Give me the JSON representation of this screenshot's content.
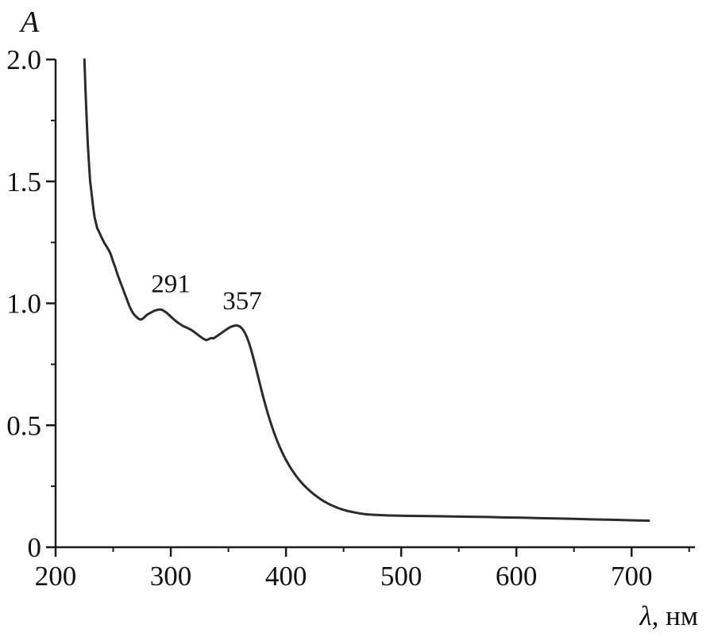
{
  "figure": {
    "background": "#ffffff",
    "axis_color": "#1a1a1a",
    "curve_color": "#2b2b2b"
  },
  "chart_data": {
    "type": "line",
    "title": "",
    "ylabel": "A",
    "xlabel_symbol": "λ",
    "xlabel_unit": ", нм",
    "xlim": [
      200,
      755
    ],
    "ylim": [
      0,
      2.0
    ],
    "x_ticks": [
      200,
      300,
      400,
      500,
      600,
      700
    ],
    "x_tick_labels": [
      "200",
      "300",
      "400",
      "500",
      "600",
      "700"
    ],
    "x_minor_ticks": [
      250,
      350,
      450,
      550,
      650,
      750
    ],
    "y_ticks": [
      0,
      0.5,
      1.0,
      1.5,
      2.0
    ],
    "y_tick_labels": [
      "0",
      "0.5",
      "1.0",
      "1.5",
      "2.0"
    ],
    "y_minor_ticks": [
      0.25,
      0.75,
      1.25,
      1.75
    ],
    "grid": false,
    "legend": false,
    "annotations": [
      {
        "text": "291",
        "x": 300,
        "y": 1.045
      },
      {
        "text": "357",
        "x": 362,
        "y": 0.975
      }
    ],
    "series": [
      {
        "name": "absorption-spectrum",
        "points": [
          [
            225,
            2.0
          ],
          [
            226,
            1.87
          ],
          [
            227,
            1.75
          ],
          [
            228,
            1.65
          ],
          [
            229,
            1.57
          ],
          [
            230,
            1.5
          ],
          [
            231,
            1.46
          ],
          [
            232,
            1.42
          ],
          [
            233,
            1.38
          ],
          [
            234,
            1.35
          ],
          [
            235,
            1.33
          ],
          [
            236,
            1.31
          ],
          [
            237,
            1.3
          ],
          [
            238,
            1.29
          ],
          [
            240,
            1.27
          ],
          [
            242,
            1.25
          ],
          [
            244,
            1.235
          ],
          [
            246,
            1.22
          ],
          [
            248,
            1.2
          ],
          [
            250,
            1.17
          ],
          [
            252,
            1.145
          ],
          [
            254,
            1.115
          ],
          [
            256,
            1.09
          ],
          [
            258,
            1.065
          ],
          [
            260,
            1.04
          ],
          [
            262,
            1.015
          ],
          [
            264,
            0.99
          ],
          [
            266,
            0.97
          ],
          [
            268,
            0.955
          ],
          [
            270,
            0.945
          ],
          [
            272,
            0.937
          ],
          [
            274,
            0.933
          ],
          [
            276,
            0.938
          ],
          [
            278,
            0.947
          ],
          [
            280,
            0.955
          ],
          [
            283,
            0.963
          ],
          [
            286,
            0.97
          ],
          [
            289,
            0.974
          ],
          [
            291,
            0.975
          ],
          [
            293,
            0.972
          ],
          [
            296,
            0.963
          ],
          [
            299,
            0.95
          ],
          [
            302,
            0.937
          ],
          [
            305,
            0.925
          ],
          [
            308,
            0.915
          ],
          [
            311,
            0.906
          ],
          [
            314,
            0.9
          ],
          [
            317,
            0.893
          ],
          [
            320,
            0.884
          ],
          [
            323,
            0.873
          ],
          [
            326,
            0.862
          ],
          [
            329,
            0.853
          ],
          [
            331,
            0.849
          ],
          [
            333,
            0.853
          ],
          [
            335,
            0.858
          ],
          [
            337,
            0.856
          ],
          [
            339,
            0.862
          ],
          [
            342,
            0.872
          ],
          [
            345,
            0.882
          ],
          [
            348,
            0.892
          ],
          [
            351,
            0.901
          ],
          [
            354,
            0.907
          ],
          [
            357,
            0.91
          ],
          [
            360,
            0.905
          ],
          [
            362,
            0.896
          ],
          [
            364,
            0.882
          ],
          [
            366,
            0.862
          ],
          [
            368,
            0.836
          ],
          [
            370,
            0.805
          ],
          [
            372,
            0.77
          ],
          [
            374,
            0.733
          ],
          [
            376,
            0.695
          ],
          [
            378,
            0.657
          ],
          [
            380,
            0.62
          ],
          [
            382,
            0.585
          ],
          [
            384,
            0.552
          ],
          [
            386,
            0.521
          ],
          [
            388,
            0.492
          ],
          [
            390,
            0.465
          ],
          [
            392,
            0.44
          ],
          [
            394,
            0.417
          ],
          [
            396,
            0.396
          ],
          [
            398,
            0.376
          ],
          [
            400,
            0.358
          ],
          [
            403,
            0.333
          ],
          [
            406,
            0.311
          ],
          [
            409,
            0.291
          ],
          [
            412,
            0.273
          ],
          [
            415,
            0.257
          ],
          [
            418,
            0.243
          ],
          [
            421,
            0.23
          ],
          [
            424,
            0.218
          ],
          [
            427,
            0.207
          ],
          [
            430,
            0.197
          ],
          [
            433,
            0.188
          ],
          [
            436,
            0.18
          ],
          [
            439,
            0.173
          ],
          [
            442,
            0.167
          ],
          [
            445,
            0.161
          ],
          [
            448,
            0.156
          ],
          [
            451,
            0.152
          ],
          [
            454,
            0.148
          ],
          [
            457,
            0.145
          ],
          [
            460,
            0.142
          ],
          [
            464,
            0.139
          ],
          [
            468,
            0.136
          ],
          [
            472,
            0.134
          ],
          [
            476,
            0.133
          ],
          [
            480,
            0.132
          ],
          [
            490,
            0.13
          ],
          [
            500,
            0.129
          ],
          [
            515,
            0.128
          ],
          [
            530,
            0.127
          ],
          [
            545,
            0.126
          ],
          [
            560,
            0.125
          ],
          [
            575,
            0.124
          ],
          [
            590,
            0.122
          ],
          [
            605,
            0.121
          ],
          [
            620,
            0.119
          ],
          [
            635,
            0.118
          ],
          [
            650,
            0.116
          ],
          [
            665,
            0.114
          ],
          [
            680,
            0.113
          ],
          [
            695,
            0.111
          ],
          [
            705,
            0.11
          ],
          [
            715,
            0.109
          ]
        ]
      }
    ]
  }
}
